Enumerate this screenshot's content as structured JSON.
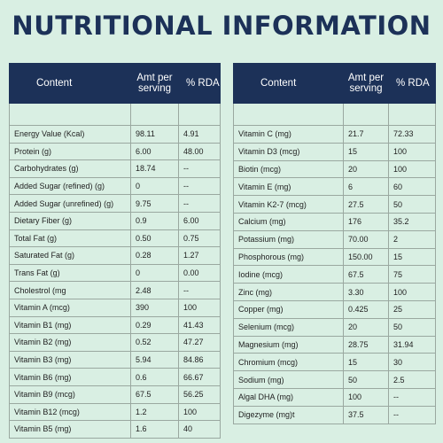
{
  "title": "NUTRITIONAL INFORMATION",
  "headers": {
    "content": "Content",
    "amt_per_serving": "Amt per serving",
    "rda": "% RDA"
  },
  "colors": {
    "navy": "#1c3158",
    "mint": "#d9efe3"
  },
  "left_table": [
    {
      "name": "Energy Value (Kcal)",
      "amt": "98.11",
      "rda": "4.91"
    },
    {
      "name": "Protein (g)",
      "amt": "6.00",
      "rda": "48.00"
    },
    {
      "name": "Carbohydrates (g)",
      "amt": "18.74",
      "rda": "--"
    },
    {
      "name": "Added Sugar (refined) (g)",
      "amt": "0",
      "rda": "--"
    },
    {
      "name": "Added Sugar (unrefined) (g)",
      "amt": "9.75",
      "rda": "--"
    },
    {
      "name": "Dietary Fiber (g)",
      "amt": "0.9",
      "rda": "6.00"
    },
    {
      "name": "Total Fat (g)",
      "amt": "0.50",
      "rda": "0.75"
    },
    {
      "name": "Saturated Fat (g)",
      "amt": "0.28",
      "rda": "1.27"
    },
    {
      "name": "Trans Fat (g)",
      "amt": "0",
      "rda": "0.00"
    },
    {
      "name": "Cholestrol (mg",
      "amt": "2.48",
      "rda": "--"
    },
    {
      "name": "Vitamin A (mcg)",
      "amt": "390",
      "rda": "100"
    },
    {
      "name": "Vitamin B1 (mg)",
      "amt": "0.29",
      "rda": "41.43"
    },
    {
      "name": "Vitamin B2 (mg)",
      "amt": "0.52",
      "rda": "47.27"
    },
    {
      "name": "Vitamin B3 (mg)",
      "amt": "5.94",
      "rda": "84.86"
    },
    {
      "name": "Vitamin B6 (mg)",
      "amt": "0.6",
      "rda": "66.67"
    },
    {
      "name": "Vitamin B9 (mcg)",
      "amt": "67.5",
      "rda": "56.25"
    },
    {
      "name": "Vitamin B12 (mcg)",
      "amt": "1.2",
      "rda": "100"
    },
    {
      "name": "Vitamin B5 (mg)",
      "amt": "1.6",
      "rda": "40"
    }
  ],
  "right_table": [
    {
      "name": "Vitamin C (mg)",
      "amt": "21.7",
      "rda": "72.33"
    },
    {
      "name": "Vitamin D3 (mcg)",
      "amt": "15",
      "rda": "100"
    },
    {
      "name": "Biotin (mcg)",
      "amt": "20",
      "rda": "100"
    },
    {
      "name": "Vitamin E (mg)",
      "amt": "6",
      "rda": "60"
    },
    {
      "name": "Vitamin K2-7 (mcg)",
      "amt": "27.5",
      "rda": "50"
    },
    {
      "name": "Calcium (mg)",
      "amt": "176",
      "rda": "35.2"
    },
    {
      "name": "Potassium (mg)",
      "amt": "70.00",
      "rda": "2"
    },
    {
      "name": "Phosphorous (mg)",
      "amt": "150.00",
      "rda": "15"
    },
    {
      "name": "Iodine (mcg)",
      "amt": "67.5",
      "rda": "75"
    },
    {
      "name": "Zinc (mg)",
      "amt": "3.30",
      "rda": "100"
    },
    {
      "name": "Copper (mg)",
      "amt": "0.425",
      "rda": "25"
    },
    {
      "name": "Selenium (mcg)",
      "amt": "20",
      "rda": "50"
    },
    {
      "name": "Magnesium (mg)",
      "amt": "28.75",
      "rda": "31.94"
    },
    {
      "name": "Chromium (mcg)",
      "amt": "15",
      "rda": "30"
    },
    {
      "name": "Sodium (mg)",
      "amt": "50",
      "rda": "2.5"
    },
    {
      "name": "Algal DHA (mg)",
      "amt": "100",
      "rda": "--"
    },
    {
      "name": "Digezyme (mg)t",
      "amt": "37.5",
      "rda": "--"
    }
  ]
}
